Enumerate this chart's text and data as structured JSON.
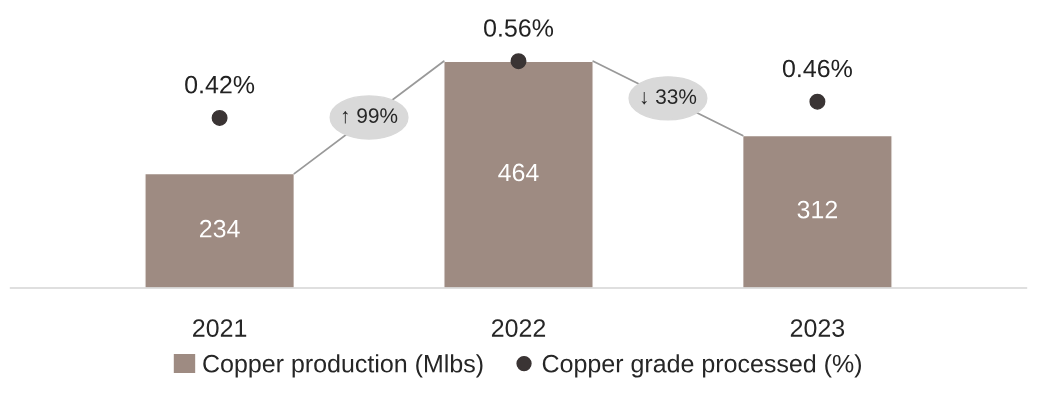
{
  "chart_data": {
    "type": "bar",
    "categories": [
      "2021",
      "2022",
      "2023"
    ],
    "series": [
      {
        "name": "Copper production (Mlbs)",
        "color": "#9e8b82",
        "values": [
          234,
          464,
          312
        ]
      },
      {
        "name": "Copper grade processed (%)",
        "type": "scatter",
        "axis": "y2",
        "color": "#3a3434",
        "values": [
          0.42,
          0.56,
          0.46
        ],
        "value_labels": [
          "0.42%",
          "0.56%",
          "0.46%"
        ]
      }
    ],
    "data_labels": true,
    "legend": "bottom",
    "grid": false,
    "marker": "circle",
    "annotations": [
      "↑ 99%",
      "↓ 33%"
    ]
  }
}
